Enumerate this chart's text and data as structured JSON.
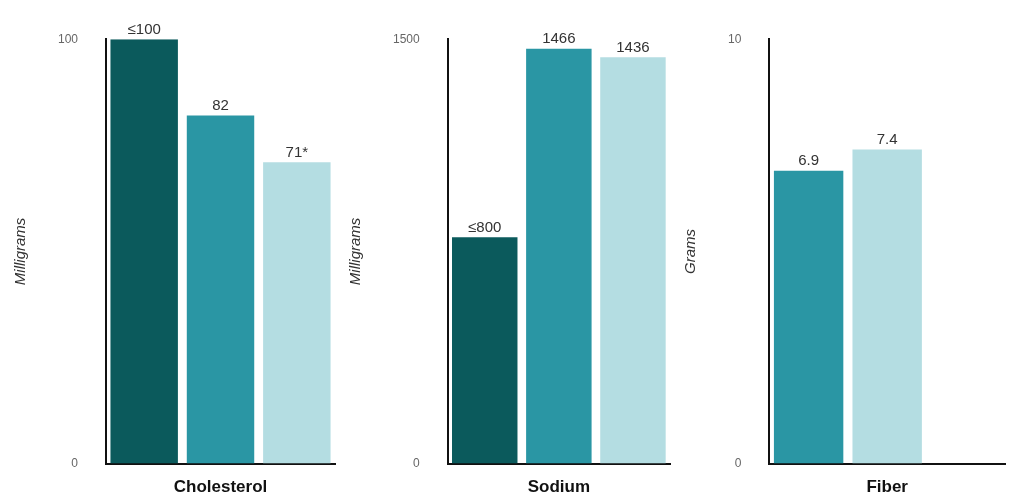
{
  "chart_data": [
    {
      "type": "bar",
      "xlabel": "Cholesterol",
      "ylabel": "Milligrams",
      "categories": [
        null,
        null,
        null
      ],
      "values": [
        100,
        82,
        71
      ],
      "colors": [
        "#0b5a5c",
        "#2a96a4",
        "#b4dde2"
      ],
      "value_labels": [
        "≤100",
        "82",
        "71*"
      ],
      "ylim": [
        0,
        100
      ],
      "yticks": [
        0,
        100
      ],
      "grid": false,
      "legend": false
    },
    {
      "type": "bar",
      "xlabel": "Sodium",
      "ylabel": "Milligrams",
      "categories": [
        null,
        null,
        null
      ],
      "values": [
        800,
        1466,
        1436
      ],
      "colors": [
        "#0b5a5c",
        "#2a96a4",
        "#b4dde2"
      ],
      "value_labels": [
        "≤800",
        "1466",
        "1436"
      ],
      "ylim": [
        0,
        1500
      ],
      "yticks": [
        0,
        1500
      ],
      "grid": false,
      "legend": false
    },
    {
      "type": "bar",
      "xlabel": "Fiber",
      "ylabel": "Grams",
      "categories": [
        null,
        null
      ],
      "values": [
        6.9,
        7.4
      ],
      "colors": [
        "#2a96a4",
        "#b4dde2"
      ],
      "value_labels": [
        "6.9",
        "7.4"
      ],
      "ylim": [
        0,
        10
      ],
      "yticks": [
        0,
        10
      ],
      "grid": false,
      "legend": false
    }
  ]
}
